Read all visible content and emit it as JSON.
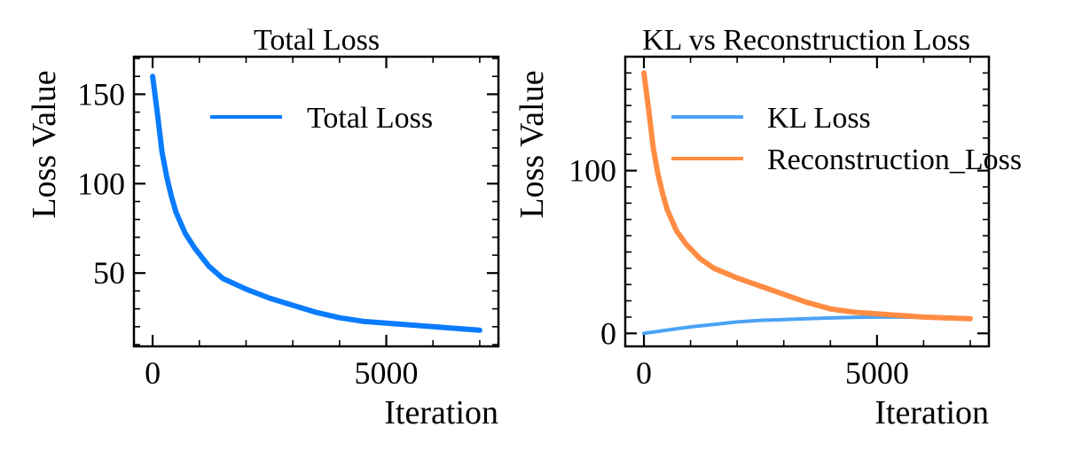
{
  "chart_data": [
    {
      "type": "line",
      "title": "Total Loss",
      "xlabel": "Iteration",
      "ylabel": "Loss Value",
      "xlim": [
        -400,
        7400
      ],
      "ylim": [
        9,
        171
      ],
      "xticks": [
        0,
        5000
      ],
      "xtick_labels": [
        "0",
        "5000"
      ],
      "yticks": [
        50,
        100,
        150
      ],
      "ytick_labels": [
        "50",
        "100",
        "150"
      ],
      "grid": false,
      "legend_position": "upper-right",
      "series": [
        {
          "name": "Total Loss",
          "color": "#0a7cff",
          "x": [
            0,
            100,
            200,
            300,
            400,
            500,
            700,
            900,
            1200,
            1500,
            2000,
            2500,
            3000,
            3500,
            4000,
            4500,
            5000,
            5500,
            6000,
            6500,
            7000
          ],
          "y": [
            160,
            140,
            118,
            104,
            93,
            84,
            72,
            64,
            54,
            47,
            41,
            36,
            32,
            28,
            25,
            23,
            22,
            21,
            20,
            19,
            18
          ]
        }
      ]
    },
    {
      "type": "line",
      "title": "KL vs Reconstruction Loss",
      "xlabel": "Iteration",
      "ylabel": "Loss Value",
      "xlim": [
        -400,
        7400
      ],
      "ylim": [
        -8,
        170
      ],
      "xticks": [
        0,
        5000
      ],
      "xtick_labels": [
        "0",
        "5000"
      ],
      "yticks": [
        0,
        100
      ],
      "ytick_labels": [
        "0",
        "100"
      ],
      "grid": false,
      "legend_position": "upper-right",
      "series": [
        {
          "name": "KL Loss",
          "color": "#4ba3f5",
          "x": [
            0,
            500,
            1000,
            1500,
            2000,
            2500,
            3000,
            3500,
            4000,
            4500,
            5000,
            5500,
            6000,
            6500,
            7000
          ],
          "y": [
            0,
            2,
            4,
            5.5,
            7,
            8,
            8.5,
            9,
            9.5,
            9.8,
            10,
            10,
            9.8,
            9.5,
            9.2
          ]
        },
        {
          "name": "Reconstruction_Loss",
          "color": "#ff8c42",
          "x": [
            0,
            100,
            200,
            300,
            400,
            500,
            700,
            900,
            1200,
            1500,
            2000,
            2500,
            3000,
            3500,
            4000,
            4500,
            5000,
            5500,
            6000,
            6500,
            7000
          ],
          "y": [
            160,
            138,
            114,
            98,
            86,
            76,
            63,
            55,
            46,
            40,
            34,
            29,
            24,
            19,
            15,
            13,
            12,
            11,
            10,
            9.5,
            9
          ]
        }
      ]
    }
  ]
}
